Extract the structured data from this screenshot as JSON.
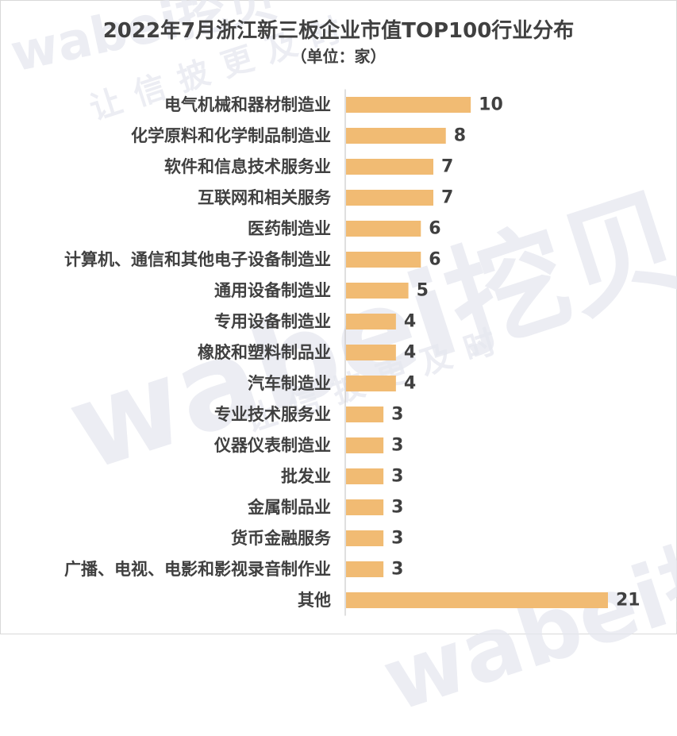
{
  "title": "2022年7月浙江新三板企业市值TOP100行业分布",
  "subtitle": "（单位：家）",
  "watermark": {
    "brand": "wabei挖贝",
    "slogan": "让信披更及时"
  },
  "colors": {
    "bar": "#f1bb73",
    "text": "#404040",
    "axis": "#bfbfbf",
    "watermark": "#e4e7ef"
  },
  "chart_data": {
    "type": "bar",
    "orientation": "horizontal",
    "title": "2022年7月浙江新三板企业市值TOP100行业分布",
    "subtitle": "（单位：家）",
    "xlabel": "",
    "ylabel": "",
    "xlim": [
      0,
      21
    ],
    "grid": false,
    "legend": "none",
    "categories": [
      "电气机械和器材制造业",
      "化学原料和化学制品制造业",
      "软件和信息技术服务业",
      "互联网和相关服务",
      "医药制造业",
      "计算机、通信和其他电子设备制造业",
      "通用设备制造业",
      "专用设备制造业",
      "橡胶和塑料制品业",
      "汽车制造业",
      "专业技术服务业",
      "仪器仪表制造业",
      "批发业",
      "金属制品业",
      "货币金融服务",
      "广播、电视、电影和影视录音制作业",
      "其他"
    ],
    "values": [
      10,
      8,
      7,
      7,
      6,
      6,
      5,
      4,
      4,
      4,
      3,
      3,
      3,
      3,
      3,
      3,
      21
    ]
  }
}
